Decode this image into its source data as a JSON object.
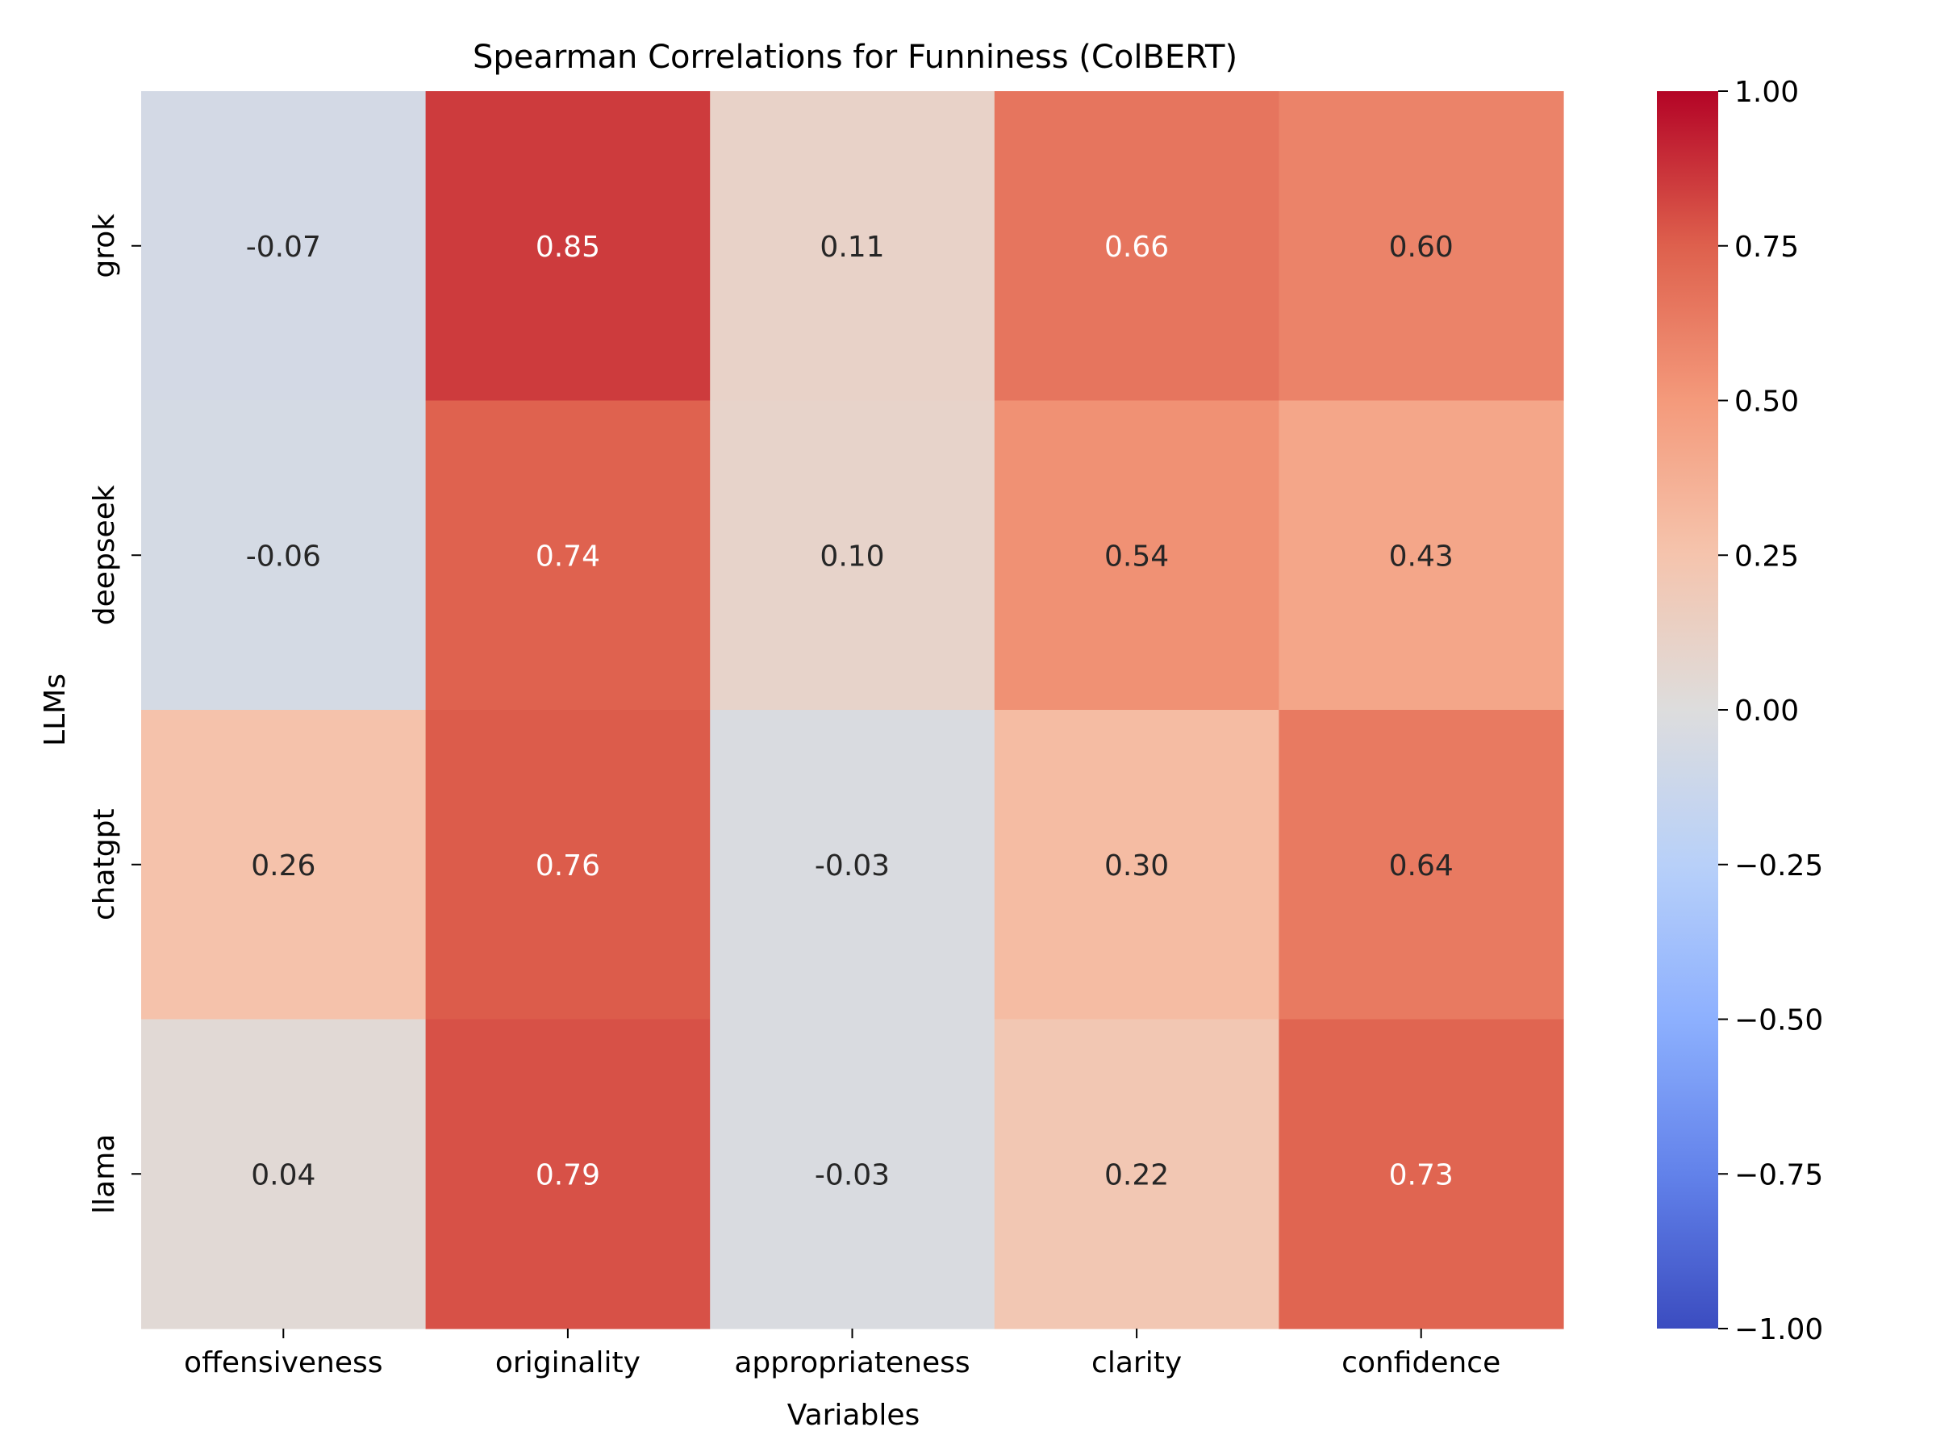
{
  "chart_data": {
    "type": "heatmap",
    "title": "Spearman Correlations for Funniness (ColBERT)",
    "xlabel": "Variables",
    "ylabel": "LLMs",
    "columns": [
      "offensiveness",
      "originality",
      "appropriateness",
      "clarity",
      "confidence"
    ],
    "rows": [
      "grok",
      "deepseek",
      "chatgpt",
      "llama"
    ],
    "values": [
      [
        -0.07,
        0.85,
        0.11,
        0.66,
        0.6
      ],
      [
        -0.06,
        0.74,
        0.1,
        0.54,
        0.43
      ],
      [
        0.26,
        0.76,
        -0.03,
        0.3,
        0.64
      ],
      [
        0.04,
        0.79,
        -0.03,
        0.22,
        0.73
      ]
    ],
    "value_format": "2 decimals",
    "colormap": "coolwarm",
    "vmin": -1.0,
    "vmax": 1.0,
    "colorbar_ticks": [
      1.0,
      0.75,
      0.5,
      0.25,
      0.0,
      -0.25,
      -0.5,
      -0.75,
      -1.0
    ],
    "colorbar_tick_labels": [
      "1.00",
      "0.75",
      "0.50",
      "0.25",
      "0.00",
      "−0.25",
      "−0.50",
      "−0.75",
      "−1.00"
    ]
  }
}
